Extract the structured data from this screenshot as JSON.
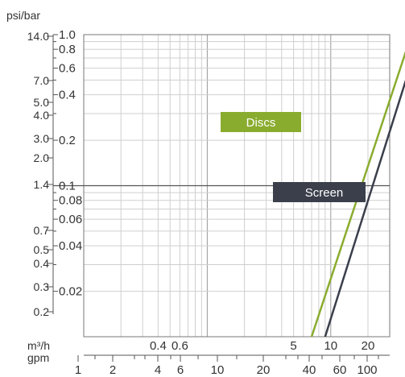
{
  "chart_data": {
    "type": "line",
    "scale": "log-log",
    "x_primary": {
      "unit_label": "m³/h",
      "range": [
        0.1,
        30
      ],
      "ticks": [
        "0.4",
        "0.6",
        "5",
        "10",
        "20"
      ]
    },
    "x_secondary": {
      "unit_label": "gpm",
      "ticks": [
        "1",
        "2",
        "4",
        "6",
        "10",
        "20",
        "40",
        "60",
        "100"
      ]
    },
    "y_left": {
      "unit_label": "psi/bar",
      "ticks": [
        "14.0",
        "7.0",
        "5.0",
        "4.0",
        "3.0",
        "2.0",
        "1.4",
        "0.7",
        "0.5",
        "0.4",
        "0.3",
        "0.2"
      ]
    },
    "y_bar": {
      "range": [
        0.01,
        1.0
      ],
      "ticks": [
        "1.0",
        "0.8",
        "0.6",
        "0.4",
        "0.2",
        "0.1",
        "0.08",
        "0.06",
        "0.04",
        "0.02"
      ]
    },
    "reference_line_bar": 0.1,
    "series": [
      {
        "name": "Discs",
        "color": "#8aac2e",
        "points": [
          [
            7.0,
            0.01
          ],
          [
            45,
            1.0
          ]
        ]
      },
      {
        "name": "Screen",
        "color": "#3a3f4b",
        "points": [
          [
            9.0,
            0.01
          ],
          [
            53,
            1.0
          ]
        ]
      }
    ],
    "grid": true
  }
}
